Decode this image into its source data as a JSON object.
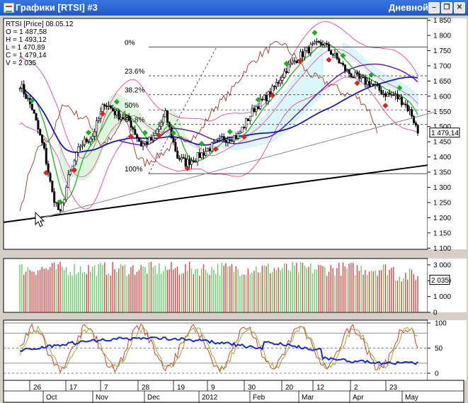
{
  "window": {
    "title": "Графики [RTSI] #3",
    "period": "Дневной",
    "minimize_glyph": "–",
    "restore_glyph": "❐",
    "close_glyph": "✕"
  },
  "legend": {
    "line1": "RTSI [Price] 08.05.12",
    "open": "O = 1 487,58",
    "high": "H = 1 493,12",
    "low": "L = 1 470,89",
    "close": "C = 1 479,14",
    "volume": "V = 2 035"
  },
  "price_axis": {
    "ticks": [
      "1 850",
      "1 800",
      "1 750",
      "1 700",
      "1 650",
      "1 600",
      "1 550",
      "1 500",
      "1 450",
      "1 400",
      "1 350",
      "1 300",
      "1 250",
      "1 200",
      "1 150",
      "1 100"
    ],
    "current": "1 479,14"
  },
  "fib_levels": [
    {
      "label": "0%",
      "price": 1762
    },
    {
      "label": "23.6%",
      "price": 1667
    },
    {
      "label": "38.2%",
      "price": 1605
    },
    {
      "label": "50%",
      "price": 1555
    },
    {
      "label": "61.8%",
      "price": 1507
    },
    {
      "label": "100%",
      "price": 1345
    }
  ],
  "volume_axis": {
    "ticks": [
      "3 000",
      "2 000",
      "1 000",
      "0"
    ],
    "current": "2 035"
  },
  "osc_axis": {
    "ticks": [
      "100",
      "50",
      "0"
    ]
  },
  "date_axis": {
    "days": [
      "26",
      "17",
      "7",
      "28",
      "19",
      "9",
      "30",
      "20",
      "12",
      "2",
      "23"
    ],
    "months": [
      "Oct",
      "Nov",
      "Dec",
      "2012",
      "Feb",
      "Mar",
      "Apr",
      "May"
    ]
  },
  "colors": {
    "up": "#22aa22",
    "down": "#dd2222",
    "ma_blue": "#1a1ab8",
    "ma_purple": "#6a2aa8",
    "ma_green": "#2db82d",
    "bollinger": "#e04aa0",
    "lagging": "#9a3a2a",
    "cloud": "#44cc44",
    "cloud2": "#4ad8ee"
  }
}
